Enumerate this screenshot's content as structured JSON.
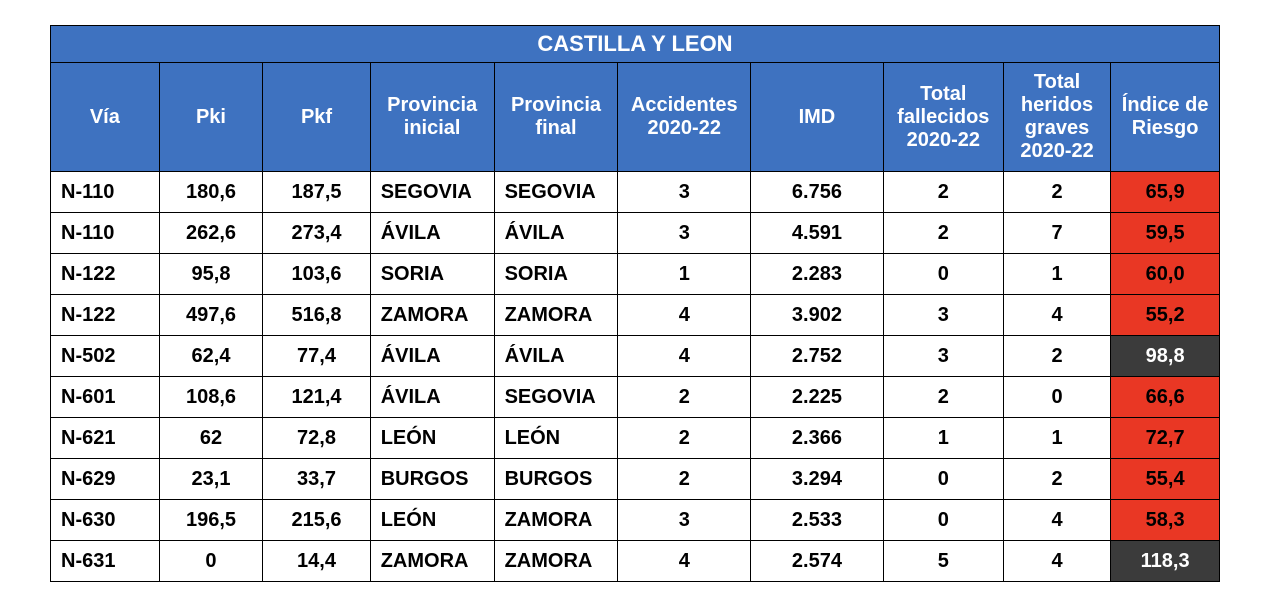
{
  "table": {
    "title": "CASTILLA Y LEON",
    "columns": [
      "Vía",
      "Pki",
      "Pkf",
      "Provincia inicial",
      "Provincia final",
      "Accidentes 2020-22",
      "IMD",
      "Total fallecidos 2020-22",
      "Total heridos graves 2020-22",
      "Índice de Riesgo"
    ],
    "col_widths_class": [
      "col-via",
      "col-pki",
      "col-pkf",
      "col-prov",
      "col-prov",
      "col-acc",
      "col-imd",
      "col-tot",
      "col-tot2",
      "col-risk"
    ],
    "header_bg": "#3e72c0",
    "header_fg": "#ffffff",
    "cell_bg": "#ffffff",
    "cell_fg": "#000000",
    "risk_colors": {
      "red_bg": "#e93724",
      "black_bg": "#3b3b3b",
      "black_fg": "#ffffff"
    },
    "rows": [
      {
        "via": "N-110",
        "pki": "180,6",
        "pkf": "187,5",
        "pi": "SEGOVIA",
        "pf": "SEGOVIA",
        "acc": "3",
        "imd": "6.756",
        "fall": "2",
        "her": "2",
        "risk": "65,9",
        "risk_level": "red"
      },
      {
        "via": "N-110",
        "pki": "262,6",
        "pkf": "273,4",
        "pi": "ÁVILA",
        "pf": "ÁVILA",
        "acc": "3",
        "imd": "4.591",
        "fall": "2",
        "her": "7",
        "risk": "59,5",
        "risk_level": "red"
      },
      {
        "via": "N-122",
        "pki": "95,8",
        "pkf": "103,6",
        "pi": "SORIA",
        "pf": "SORIA",
        "acc": "1",
        "imd": "2.283",
        "fall": "0",
        "her": "1",
        "risk": "60,0",
        "risk_level": "red"
      },
      {
        "via": "N-122",
        "pki": "497,6",
        "pkf": "516,8",
        "pi": "ZAMORA",
        "pf": "ZAMORA",
        "acc": "4",
        "imd": "3.902",
        "fall": "3",
        "her": "4",
        "risk": "55,2",
        "risk_level": "red"
      },
      {
        "via": "N-502",
        "pki": "62,4",
        "pkf": "77,4",
        "pi": "ÁVILA",
        "pf": "ÁVILA",
        "acc": "4",
        "imd": "2.752",
        "fall": "3",
        "her": "2",
        "risk": "98,8",
        "risk_level": "black"
      },
      {
        "via": "N-601",
        "pki": "108,6",
        "pkf": "121,4",
        "pi": "ÁVILA",
        "pf": "SEGOVIA",
        "acc": "2",
        "imd": "2.225",
        "fall": "2",
        "her": "0",
        "risk": "66,6",
        "risk_level": "red"
      },
      {
        "via": "N-621",
        "pki": "62",
        "pkf": "72,8",
        "pi": "LEÓN",
        "pf": "LEÓN",
        "acc": "2",
        "imd": "2.366",
        "fall": "1",
        "her": "1",
        "risk": "72,7",
        "risk_level": "red"
      },
      {
        "via": "N-629",
        "pki": "23,1",
        "pkf": "33,7",
        "pi": "BURGOS",
        "pf": "BURGOS",
        "acc": "2",
        "imd": "3.294",
        "fall": "0",
        "her": "2",
        "risk": "55,4",
        "risk_level": "red"
      },
      {
        "via": "N-630",
        "pki": "196,5",
        "pkf": "215,6",
        "pi": "LEÓN",
        "pf": "ZAMORA",
        "acc": "3",
        "imd": "2.533",
        "fall": "0",
        "her": "4",
        "risk": "58,3",
        "risk_level": "red"
      },
      {
        "via": "N-631",
        "pki": "0",
        "pkf": "14,4",
        "pi": "ZAMORA",
        "pf": "ZAMORA",
        "acc": "4",
        "imd": "2.574",
        "fall": "5",
        "her": "4",
        "risk": "118,3",
        "risk_level": "black"
      }
    ]
  }
}
